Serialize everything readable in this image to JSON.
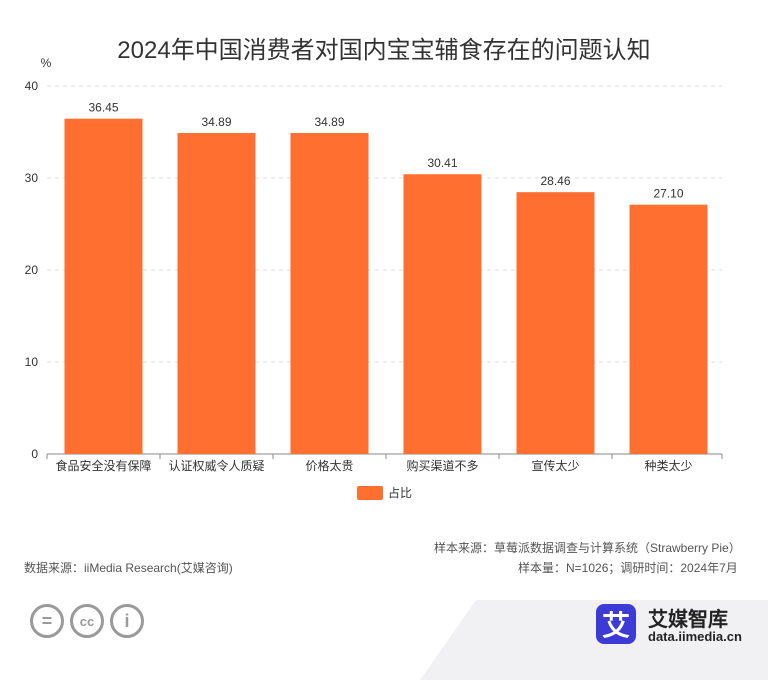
{
  "title": "2024年中国消费者对国内宝宝辅食存在的问题认知",
  "chart_data": {
    "type": "bar",
    "ylabel": "%",
    "ylim": [
      0,
      40
    ],
    "yticks": [
      0,
      10,
      20,
      30,
      40
    ],
    "categories": [
      "食品安全没有保障",
      "认证权威令人质疑",
      "价格太贵",
      "购买渠道不多",
      "宣传太少",
      "种类太少"
    ],
    "series": [
      {
        "name": "占比",
        "values": [
          36.45,
          34.89,
          34.89,
          30.41,
          28.46,
          27.1
        ],
        "labels": [
          "36.45",
          "34.89",
          "34.89",
          "30.41",
          "28.46",
          "27.10"
        ]
      }
    ],
    "grid": true,
    "legend": "bottom",
    "bar_color": "#ff6f30"
  },
  "footer": {
    "sample_source": "样本来源：草莓派数据调查与计算系统（Strawberry Pie）",
    "sample_info": "样本量：N=1026；调研时间：2024年7月",
    "data_source": "数据来源：iiMedia Research(艾媒咨询)"
  },
  "brand": {
    "logo_char": "艾",
    "name": "艾媒智库",
    "url": "data.iimedia.cn"
  },
  "license_icons": [
    "=",
    "cc",
    "i"
  ]
}
